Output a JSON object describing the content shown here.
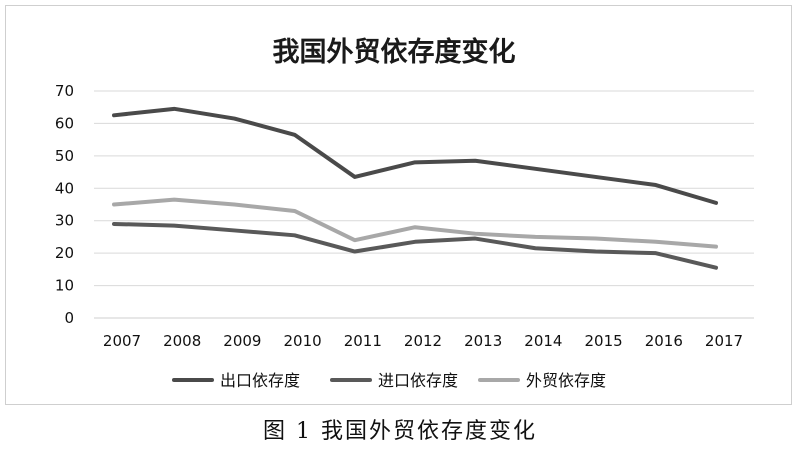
{
  "caption": "图 1 我国外贸依存度变化",
  "chart_data": {
    "type": "line",
    "title": "我国外贸依存度变化",
    "xlabel": "",
    "ylabel": "",
    "categories": [
      "2007",
      "2008",
      "2009",
      "2010",
      "2011",
      "2012",
      "2013",
      "2014",
      "2015",
      "2016",
      "2017"
    ],
    "ylim": [
      0,
      70
    ],
    "yticks": [
      0,
      10,
      20,
      30,
      40,
      50,
      60,
      70
    ],
    "grid": true,
    "legend": "bottom",
    "series": [
      {
        "name": "出口依存度",
        "color": "#4a4a4a",
        "values": [
          62.5,
          64.5,
          61.5,
          56.5,
          43.5,
          48.0,
          48.5,
          46.0,
          43.5,
          41.0,
          35.5
        ]
      },
      {
        "name": "进口依存度",
        "color": "#595959",
        "values": [
          29.0,
          28.5,
          27.0,
          25.5,
          20.5,
          23.5,
          24.5,
          21.5,
          20.5,
          20.0,
          15.5
        ]
      },
      {
        "name": "外贸依存度",
        "color": "#a8a8a8",
        "values": [
          35.0,
          36.5,
          35.0,
          33.0,
          24.0,
          28.0,
          26.0,
          25.0,
          24.5,
          23.5,
          22.0
        ]
      }
    ]
  }
}
